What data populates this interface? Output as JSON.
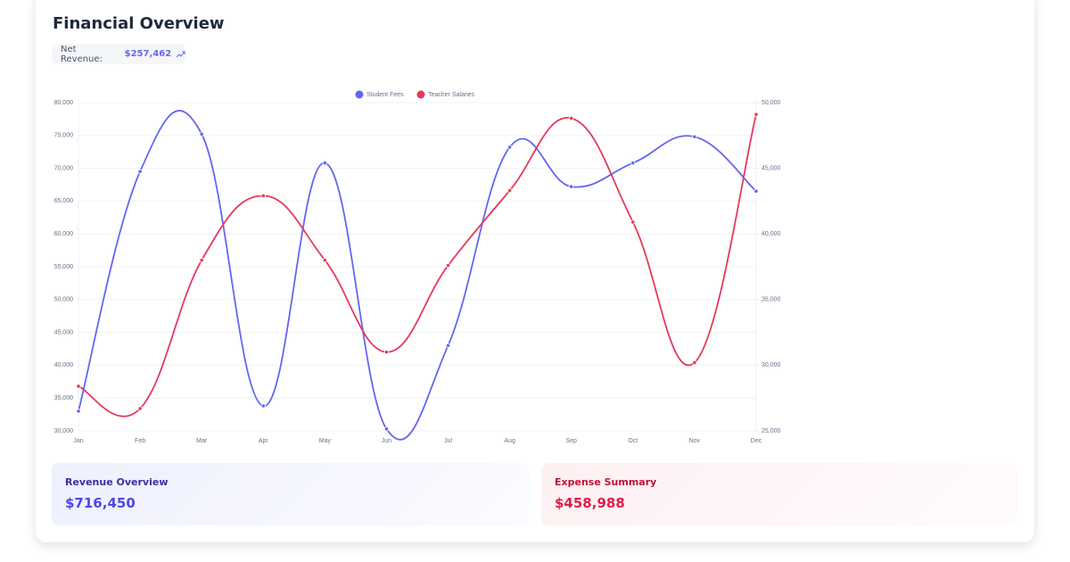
{
  "header": {
    "title": "Financial Overview",
    "net_revenue_label": "Net Revenue:",
    "net_revenue_value": "$257,462"
  },
  "chart_data": {
    "type": "line",
    "categories": [
      "Jan",
      "Feb",
      "Mar",
      "Apr",
      "May",
      "Jun",
      "Jul",
      "Aug",
      "Sep",
      "Oct",
      "Nov",
      "Dec"
    ],
    "series": [
      {
        "name": "Student Fees",
        "color": "#6366f1",
        "values": [
          33000,
          69500,
          75200,
          33800,
          70800,
          30300,
          43000,
          73200,
          67200,
          70800,
          74800,
          66500
        ]
      },
      {
        "name": "Teacher Salaries",
        "color": "#e5395a",
        "axis": "y2",
        "values": [
          28400,
          26700,
          38000,
          42900,
          38000,
          31000,
          37600,
          43300,
          48800,
          40900,
          30200,
          49100
        ]
      }
    ],
    "ylim": [
      30000,
      80000
    ],
    "yticks": [
      {
        "value": 30000,
        "label": "30,000"
      },
      {
        "value": 35000,
        "label": "35,000"
      },
      {
        "value": 40000,
        "label": "40,000"
      },
      {
        "value": 45000,
        "label": "45,000"
      },
      {
        "value": 50000,
        "label": "50,000"
      },
      {
        "value": 55000,
        "label": "55,000"
      },
      {
        "value": 60000,
        "label": "60,000"
      },
      {
        "value": 65000,
        "label": "65,000"
      },
      {
        "value": 70000,
        "label": "70,000"
      },
      {
        "value": 75000,
        "label": "75,000"
      },
      {
        "value": 80000,
        "label": "80,000"
      }
    ],
    "y2lim": [
      25000,
      50000
    ],
    "y2ticks": [
      {
        "value": 25000,
        "label": "25,000"
      },
      {
        "value": 30000,
        "label": "30,000"
      },
      {
        "value": 35000,
        "label": "35,000"
      },
      {
        "value": 40000,
        "label": "40,000"
      },
      {
        "value": 45000,
        "label": "45,000"
      },
      {
        "value": 50000,
        "label": "50,000"
      }
    ],
    "grid": true,
    "legend": "top"
  },
  "cards": [
    {
      "title": "Revenue Overview",
      "value": "$716,450"
    },
    {
      "title": "Expense Summary",
      "value": "$458,988"
    }
  ]
}
